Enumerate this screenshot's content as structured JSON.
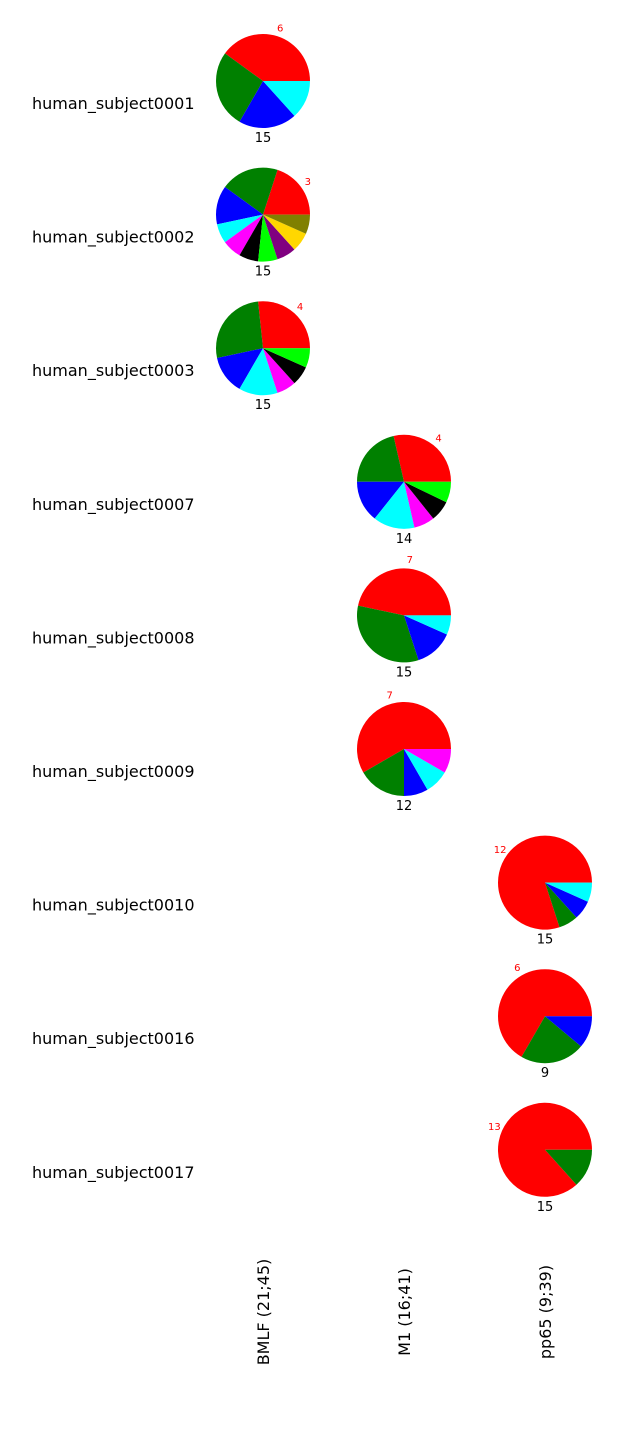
{
  "chart_data": {
    "type": "pie",
    "columns": [
      "BMLF  (21;45)",
      "M1  (16;41)",
      "pp65  (9;39)"
    ],
    "rows": [
      {
        "subject": "human_subject0001",
        "column": 0,
        "total": "15",
        "top_count": "6",
        "slices": [
          {
            "value": 6,
            "color": "#ff0000"
          },
          {
            "value": 4,
            "color": "#008000"
          },
          {
            "value": 3,
            "color": "#0000ff"
          },
          {
            "value": 2,
            "color": "#00ffff"
          }
        ]
      },
      {
        "subject": "human_subject0002",
        "column": 0,
        "total": "15",
        "top_count": "3",
        "slices": [
          {
            "value": 3,
            "color": "#ff0000"
          },
          {
            "value": 3,
            "color": "#008000"
          },
          {
            "value": 2,
            "color": "#0000ff"
          },
          {
            "value": 1,
            "color": "#00ffff"
          },
          {
            "value": 1,
            "color": "#ff00ff"
          },
          {
            "value": 1,
            "color": "#000000"
          },
          {
            "value": 1,
            "color": "#00ff00"
          },
          {
            "value": 1,
            "color": "#800080"
          },
          {
            "value": 1,
            "color": "#ffd700"
          },
          {
            "value": 1,
            "color": "#808000"
          }
        ]
      },
      {
        "subject": "human_subject0003",
        "column": 0,
        "total": "15",
        "top_count": "4",
        "slices": [
          {
            "value": 4,
            "color": "#ff0000"
          },
          {
            "value": 4,
            "color": "#008000"
          },
          {
            "value": 2,
            "color": "#0000ff"
          },
          {
            "value": 2,
            "color": "#00ffff"
          },
          {
            "value": 1,
            "color": "#ff00ff"
          },
          {
            "value": 1,
            "color": "#000000"
          },
          {
            "value": 1,
            "color": "#00ff00"
          }
        ]
      },
      {
        "subject": "human_subject0007",
        "column": 1,
        "total": "14",
        "top_count": "4",
        "slices": [
          {
            "value": 4,
            "color": "#ff0000"
          },
          {
            "value": 3,
            "color": "#008000"
          },
          {
            "value": 2,
            "color": "#0000ff"
          },
          {
            "value": 2,
            "color": "#00ffff"
          },
          {
            "value": 1,
            "color": "#ff00ff"
          },
          {
            "value": 1,
            "color": "#000000"
          },
          {
            "value": 1,
            "color": "#00ff00"
          }
        ]
      },
      {
        "subject": "human_subject0008",
        "column": 1,
        "total": "15",
        "top_count": "7",
        "slices": [
          {
            "value": 7,
            "color": "#ff0000"
          },
          {
            "value": 5,
            "color": "#008000"
          },
          {
            "value": 2,
            "color": "#0000ff"
          },
          {
            "value": 1,
            "color": "#00ffff"
          }
        ]
      },
      {
        "subject": "human_subject0009",
        "column": 1,
        "total": "12",
        "top_count": "7",
        "slices": [
          {
            "value": 7,
            "color": "#ff0000"
          },
          {
            "value": 2,
            "color": "#008000"
          },
          {
            "value": 1,
            "color": "#0000ff"
          },
          {
            "value": 1,
            "color": "#00ffff"
          },
          {
            "value": 1,
            "color": "#ff00ff"
          }
        ]
      },
      {
        "subject": "human_subject0010",
        "column": 2,
        "total": "15",
        "top_count": "12",
        "slices": [
          {
            "value": 12,
            "color": "#ff0000"
          },
          {
            "value": 1,
            "color": "#008000"
          },
          {
            "value": 1,
            "color": "#0000ff"
          },
          {
            "value": 1,
            "color": "#00ffff"
          }
        ]
      },
      {
        "subject": "human_subject0016",
        "column": 2,
        "total": "9",
        "top_count": "6",
        "slices": [
          {
            "value": 6,
            "color": "#ff0000"
          },
          {
            "value": 2,
            "color": "#008000"
          },
          {
            "value": 1,
            "color": "#0000ff"
          }
        ]
      },
      {
        "subject": "human_subject0017",
        "column": 2,
        "total": "15",
        "top_count": "13",
        "slices": [
          {
            "value": 13,
            "color": "#ff0000"
          },
          {
            "value": 2,
            "color": "#008000"
          }
        ]
      }
    ]
  }
}
